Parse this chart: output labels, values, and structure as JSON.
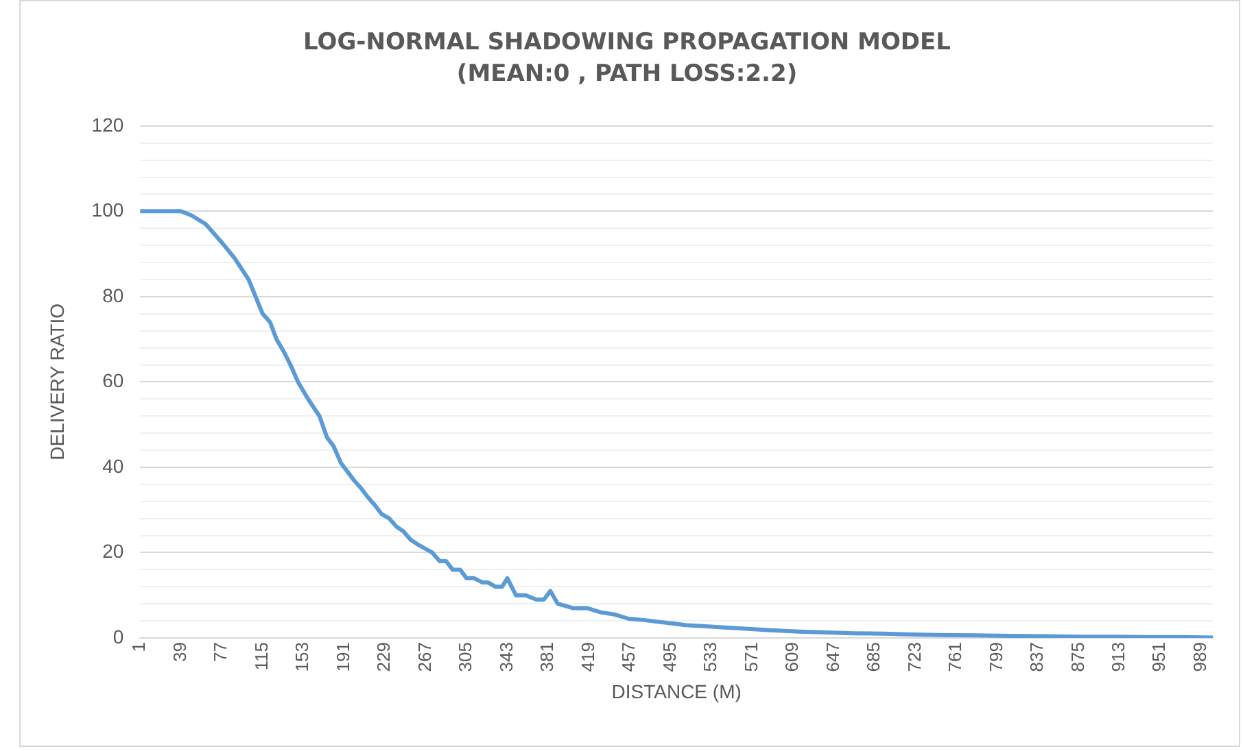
{
  "chart_data": {
    "type": "line",
    "title": "LOG-NORMAL SHADOWING PROPAGATION MODEL",
    "subtitle": "(MEAN:0 , PATH LOSS:2.2)",
    "xlabel": "DISTANCE (M)",
    "ylabel": "DELIVERY RATIO",
    "xlim": [
      1,
      1000
    ],
    "xticks": [
      1,
      39,
      77,
      115,
      153,
      191,
      229,
      267,
      305,
      343,
      381,
      419,
      457,
      495,
      533,
      571,
      609,
      647,
      685,
      723,
      761,
      799,
      837,
      875,
      913,
      951,
      989
    ],
    "ylim": [
      0,
      120
    ],
    "yticks": [
      0,
      {
        "value": 4,
        "label": null
      },
      {
        "value": 8,
        "label": null
      },
      {
        "value": 12,
        "label": null
      },
      {
        "value": 16,
        "label": null
      },
      20,
      {
        "value": 24,
        "label": null
      },
      {
        "value": 28,
        "label": null
      },
      {
        "value": 32,
        "label": null
      },
      {
        "value": 36,
        "label": null
      },
      40,
      {
        "value": 44,
        "label": null
      },
      {
        "value": 48,
        "label": null
      },
      {
        "value": 52,
        "label": null
      },
      {
        "value": 56,
        "label": null
      },
      60,
      {
        "value": 64,
        "label": null
      },
      {
        "value": 68,
        "label": null
      },
      {
        "value": 72,
        "label": null
      },
      {
        "value": 76,
        "label": null
      },
      80,
      {
        "value": 84,
        "label": null
      },
      {
        "value": 88,
        "label": null
      },
      {
        "value": 92,
        "label": null
      },
      {
        "value": 96,
        "label": null
      },
      100,
      {
        "value": 104,
        "label": null
      },
      {
        "value": 108,
        "label": null
      },
      {
        "value": 112,
        "label": null
      },
      {
        "value": 116,
        "label": null
      },
      120
    ],
    "grid": "y",
    "legend": false,
    "marker": "none",
    "line_style": "solid",
    "series": [
      {
        "color": "#5b9bd5",
        "x": [
          1,
          20,
          39,
          49,
          62,
          76,
          89,
          102,
          115,
          122,
          128,
          135,
          141,
          148,
          155,
          160,
          168,
          175,
          181,
          188,
          194,
          200,
          207,
          213,
          220,
          226,
          233,
          240,
          246,
          253,
          259,
          266,
          273,
          280,
          286,
          292,
          299,
          305,
          312,
          320,
          325,
          332,
          338,
          343,
          351,
          360,
          370,
          377,
          383,
          390,
          404,
          417,
          430,
          443,
          456,
          470,
          483,
          496,
          509,
          530,
          548,
          570,
          588,
          615,
          640,
          665,
          693,
          720,
          745,
          780,
          811,
          845,
          877,
          910,
          942,
          970,
          1000
        ],
        "values": [
          100,
          100,
          100,
          99,
          97,
          93,
          89,
          84,
          76,
          74,
          70,
          67,
          64,
          60,
          57,
          55,
          52,
          47,
          45,
          41,
          39,
          37,
          35,
          33,
          31,
          29,
          28,
          26,
          25,
          23,
          22,
          21,
          20,
          18,
          18,
          16,
          16,
          14,
          14,
          13,
          13,
          12,
          12,
          14,
          10,
          10,
          9,
          9,
          11,
          8,
          7,
          7,
          6,
          5.5,
          4.5,
          4.2,
          3.8,
          3.4,
          3,
          2.7,
          2.4,
          2.1,
          1.8,
          1.5,
          1.3,
          1.1,
          1,
          0.8,
          0.7,
          0.6,
          0.5,
          0.4,
          0.3,
          0.3,
          0.2,
          0.2,
          0.1
        ]
      }
    ]
  }
}
